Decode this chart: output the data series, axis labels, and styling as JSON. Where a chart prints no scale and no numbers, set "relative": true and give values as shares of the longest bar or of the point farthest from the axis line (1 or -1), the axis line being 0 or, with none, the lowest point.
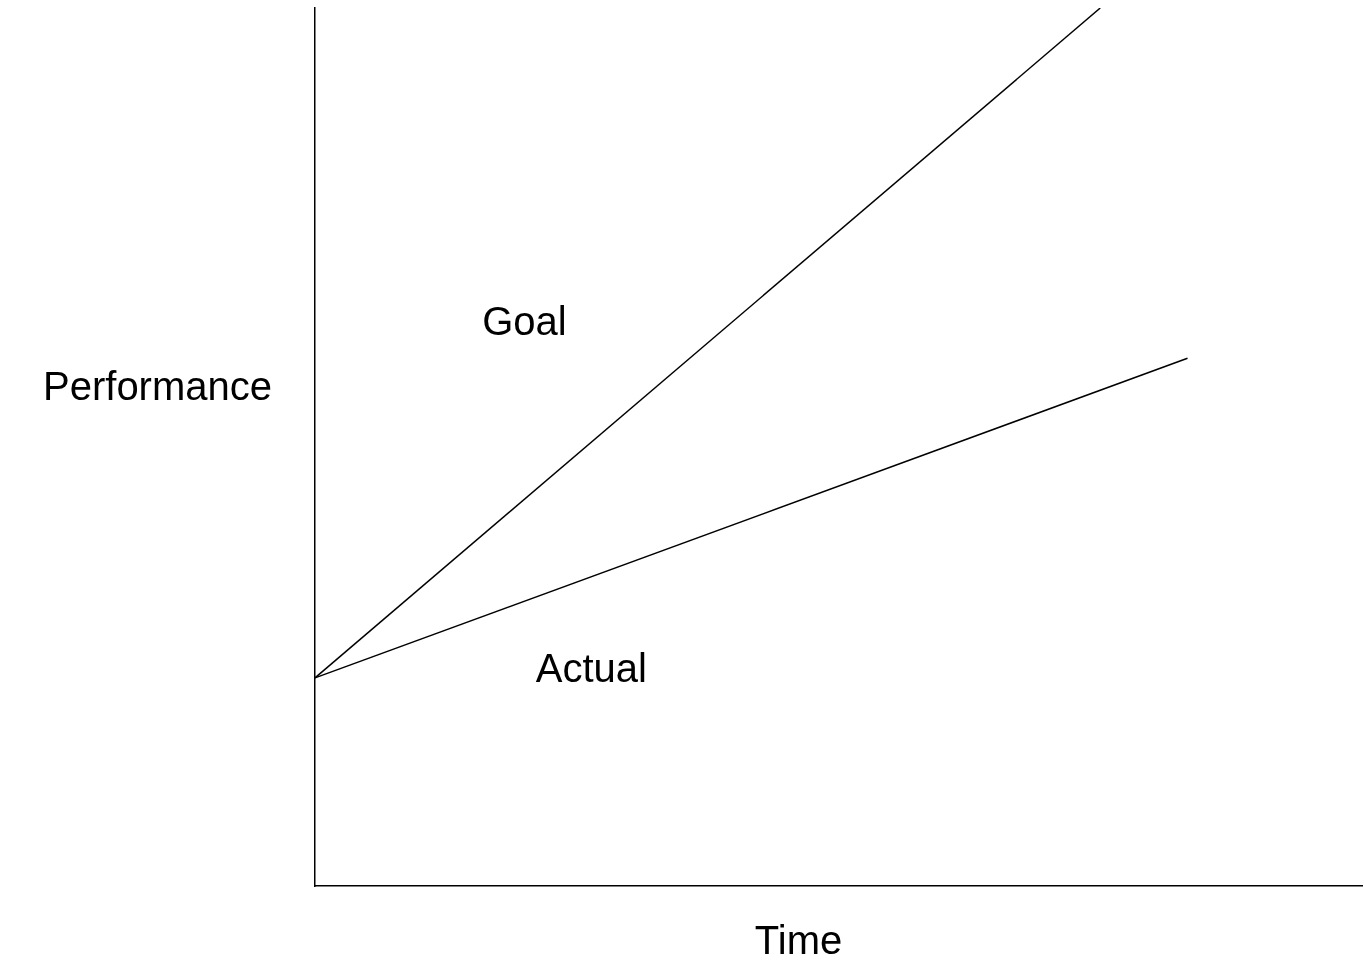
{
  "chart_data": {
    "type": "line",
    "xlabel": "Time",
    "ylabel": "Performance",
    "relative": true,
    "categories": [
      null,
      null,
      null,
      null,
      null,
      null,
      null,
      null,
      null,
      null,
      null,
      null,
      null
    ],
    "series": [
      {
        "name": "Goal",
        "color": "#000000",
        "values": [
          0.237,
          null,
          null,
          null,
          null,
          null,
          null,
          null,
          null,
          1,
          null,
          null,
          null
        ]
      },
      {
        "name": "Actual",
        "color": "#000000",
        "values": [
          0.237,
          null,
          null,
          null,
          null,
          null,
          null,
          null,
          null,
          null,
          0.601,
          null,
          null
        ]
      }
    ],
    "legend": false,
    "grid": false,
    "marker": "none",
    "line_style": "solid"
  }
}
